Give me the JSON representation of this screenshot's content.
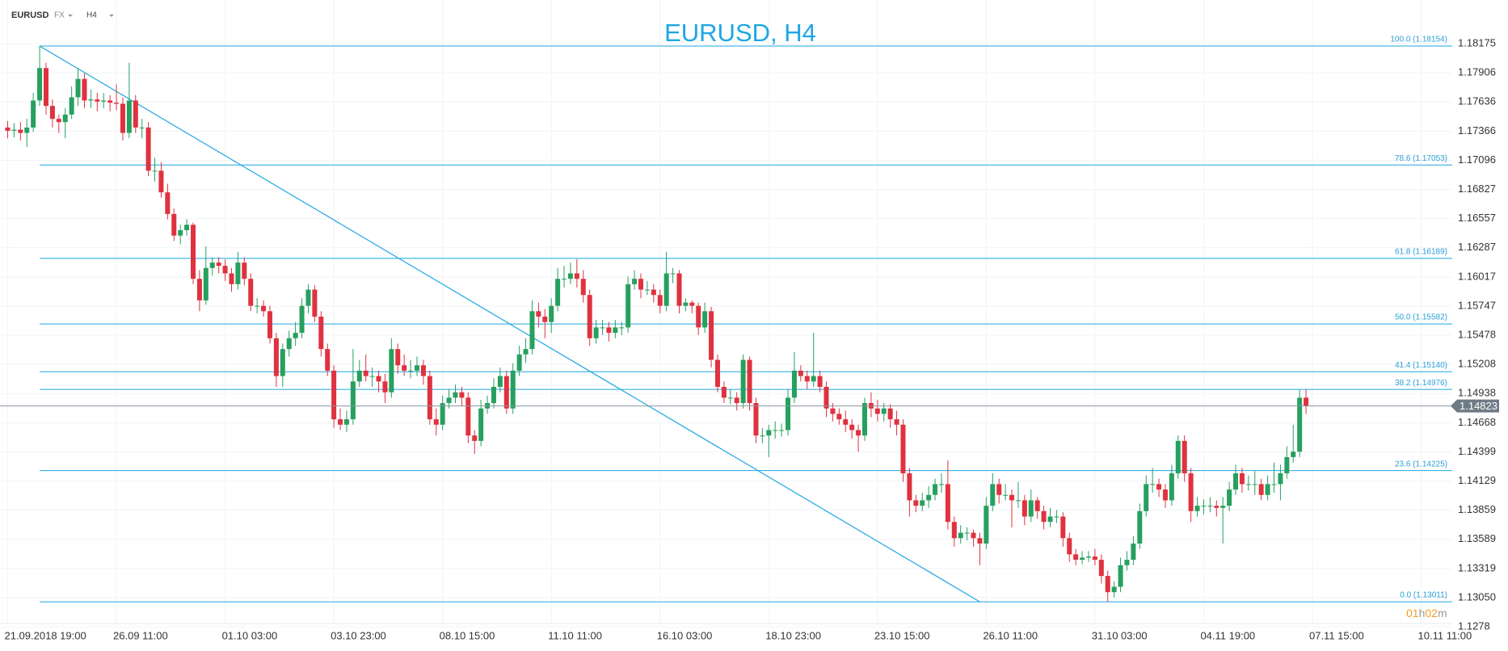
{
  "chart_data": {
    "type": "candlestick",
    "title": "EURUSD, H4",
    "symbol": "EURUSD",
    "market": "FX",
    "timeframe": "H4",
    "countdown": [
      "01",
      "h",
      "02",
      "m"
    ],
    "up_color": "#26a05f",
    "down_color": "#e0313f",
    "line_color": "#1ea6e3",
    "grid": true,
    "xlim": [
      -1.2,
      226.24
    ],
    "ylim": [
      1.1275,
      1.1858
    ],
    "yticks": [
      1.18175,
      1.17906,
      1.17636,
      1.17366,
      1.17096,
      1.16827,
      1.16557,
      1.16287,
      1.16017,
      1.15747,
      1.15478,
      1.15208,
      1.14938,
      1.14668,
      1.14399,
      1.14129,
      1.13859,
      1.13589,
      1.13319,
      {
        "value": 1.1305,
        "label": "1.13050"
      },
      1.1278
    ],
    "xticks": [
      {
        "value": 0,
        "label": "21.09.2018  19:00"
      },
      {
        "value": 17,
        "label": "26.09  11:00"
      },
      {
        "value": 34,
        "label": "01.10  03:00"
      },
      {
        "value": 51,
        "label": "03.10  23:00"
      },
      {
        "value": 68,
        "label": "08.10  15:00"
      },
      {
        "value": 85,
        "label": "11.10  11:00"
      },
      {
        "value": 102,
        "label": "16.10  03:00"
      },
      {
        "value": 119,
        "label": "18.10  23:00"
      },
      {
        "value": 136,
        "label": "23.10  15:00"
      },
      {
        "value": 153,
        "label": "26.10  11:00"
      },
      {
        "value": 170,
        "label": "31.10  03:00"
      },
      {
        "value": 187,
        "label": "04.11  19:00"
      },
      {
        "value": 204,
        "label": "07.11  15:00"
      },
      {
        "value": 221,
        "label": "10.11  11:00"
      }
    ],
    "fib_levels": [
      {
        "value": 1.18154,
        "label": "100.0 (1.18154)"
      },
      {
        "value": 1.17053,
        "label": "78.6 (1.17053)"
      },
      {
        "value": 1.16189,
        "label": "61.8 (1.16189)"
      },
      {
        "value": 1.15582,
        "label": "50.0 (1.15582)"
      },
      {
        "value": 1.1514,
        "label": "41.4 (1.15140)"
      },
      {
        "value": 1.14976,
        "label": "38.2 (1.14976)"
      },
      {
        "value": 1.14225,
        "label": "23.6 (1.14225)"
      },
      {
        "value": 1.13011,
        "label": "0.0 (1.13011)"
      }
    ],
    "trendline": {
      "x": [
        5,
        152
      ],
      "y": [
        1.18154,
        1.13011
      ]
    },
    "ohlc": [
      [
        1.174,
        1.1746,
        1.173,
        1.1737
      ],
      [
        1.1737,
        1.1744,
        1.1731,
        1.1738
      ],
      [
        1.1738,
        1.1745,
        1.1728,
        1.1735
      ],
      [
        1.1735,
        1.1748,
        1.1722,
        1.174
      ],
      [
        1.174,
        1.1772,
        1.1736,
        1.1765
      ],
      [
        1.1765,
        1.18154,
        1.176,
        1.1795
      ],
      [
        1.1795,
        1.18,
        1.1752,
        1.176
      ],
      [
        1.176,
        1.1766,
        1.174,
        1.1748
      ],
      [
        1.1748,
        1.1752,
        1.1735,
        1.1745
      ],
      [
        1.1745,
        1.1758,
        1.173,
        1.1752
      ],
      [
        1.1752,
        1.1778,
        1.1748,
        1.1768
      ],
      [
        1.1768,
        1.1795,
        1.176,
        1.1785
      ],
      [
        1.1785,
        1.179,
        1.1758,
        1.1765
      ],
      [
        1.1765,
        1.1775,
        1.1758,
        1.1766
      ],
      [
        1.1766,
        1.1772,
        1.1755,
        1.1764
      ],
      [
        1.1764,
        1.1772,
        1.1758,
        1.1765
      ],
      [
        1.1765,
        1.177,
        1.1755,
        1.1763
      ],
      [
        1.1763,
        1.178,
        1.1756,
        1.1762
      ],
      [
        1.1762,
        1.1768,
        1.1728,
        1.1735
      ],
      [
        1.1735,
        1.18,
        1.173,
        1.1765
      ],
      [
        1.1765,
        1.177,
        1.1735,
        1.174
      ],
      [
        1.174,
        1.1748,
        1.173,
        1.174
      ],
      [
        1.174,
        1.1745,
        1.1695,
        1.17
      ],
      [
        1.17,
        1.1712,
        1.169,
        1.17
      ],
      [
        1.17,
        1.1708,
        1.1675,
        1.168
      ],
      [
        1.168,
        1.1688,
        1.1655,
        1.166
      ],
      [
        1.166,
        1.1665,
        1.1635,
        1.164
      ],
      [
        1.164,
        1.165,
        1.1632,
        1.1645
      ],
      [
        1.1645,
        1.1655,
        1.164,
        1.165
      ],
      [
        1.165,
        1.1652,
        1.1595,
        1.16
      ],
      [
        1.16,
        1.1608,
        1.157,
        1.158
      ],
      [
        1.158,
        1.163,
        1.1576,
        1.161
      ],
      [
        1.161,
        1.162,
        1.1603,
        1.1615
      ],
      [
        1.1615,
        1.162,
        1.1605,
        1.1612
      ],
      [
        1.1612,
        1.1618,
        1.1598,
        1.1605
      ],
      [
        1.1605,
        1.161,
        1.1588,
        1.1595
      ],
      [
        1.1595,
        1.1625,
        1.159,
        1.1615
      ],
      [
        1.1615,
        1.162,
        1.1594,
        1.16
      ],
      [
        1.16,
        1.1605,
        1.157,
        1.1575
      ],
      [
        1.1575,
        1.1582,
        1.1568,
        1.1575
      ],
      [
        1.1575,
        1.158,
        1.1565,
        1.157
      ],
      [
        1.157,
        1.1575,
        1.154,
        1.1545
      ],
      [
        1.1545,
        1.155,
        1.15,
        1.151
      ],
      [
        1.151,
        1.154,
        1.15,
        1.1535
      ],
      [
        1.1535,
        1.1552,
        1.1528,
        1.1545
      ],
      [
        1.1545,
        1.156,
        1.1538,
        1.155
      ],
      [
        1.155,
        1.1582,
        1.1545,
        1.1575
      ],
      [
        1.1575,
        1.1595,
        1.1568,
        1.159
      ],
      [
        1.159,
        1.1594,
        1.156,
        1.1565
      ],
      [
        1.1565,
        1.157,
        1.1528,
        1.1535
      ],
      [
        1.1535,
        1.154,
        1.151,
        1.1515
      ],
      [
        1.1515,
        1.152,
        1.1462,
        1.147
      ],
      [
        1.147,
        1.148,
        1.146,
        1.1465
      ],
      [
        1.1465,
        1.1478,
        1.1458,
        1.147
      ],
      [
        1.147,
        1.1535,
        1.1465,
        1.1505
      ],
      [
        1.1505,
        1.1525,
        1.15,
        1.1515
      ],
      [
        1.1515,
        1.153,
        1.1505,
        1.151
      ],
      [
        1.151,
        1.1518,
        1.15,
        1.151
      ],
      [
        1.151,
        1.1515,
        1.1495,
        1.1505
      ],
      [
        1.1505,
        1.1512,
        1.1485,
        1.1495
      ],
      [
        1.1495,
        1.1545,
        1.149,
        1.1535
      ],
      [
        1.1535,
        1.154,
        1.1512,
        1.152
      ],
      [
        1.152,
        1.153,
        1.151,
        1.1515
      ],
      [
        1.1515,
        1.1525,
        1.1508,
        1.1515
      ],
      [
        1.1515,
        1.1528,
        1.151,
        1.152
      ],
      [
        1.152,
        1.1525,
        1.1502,
        1.151
      ],
      [
        1.151,
        1.1515,
        1.1465,
        1.147
      ],
      [
        1.147,
        1.148,
        1.1455,
        1.1465
      ],
      [
        1.1465,
        1.1492,
        1.146,
        1.1485
      ],
      [
        1.1485,
        1.1498,
        1.148,
        1.149
      ],
      [
        1.149,
        1.1502,
        1.1485,
        1.1495
      ],
      [
        1.1495,
        1.15,
        1.1482,
        1.149
      ],
      [
        1.149,
        1.1495,
        1.1448,
        1.1455
      ],
      [
        1.1455,
        1.146,
        1.1438,
        1.145
      ],
      [
        1.145,
        1.1488,
        1.1445,
        1.148
      ],
      [
        1.148,
        1.1492,
        1.1475,
        1.1485
      ],
      [
        1.1485,
        1.1508,
        1.148,
        1.15
      ],
      [
        1.15,
        1.1518,
        1.1495,
        1.151
      ],
      [
        1.151,
        1.1515,
        1.1475,
        1.148
      ],
      [
        1.148,
        1.1522,
        1.1475,
        1.1515
      ],
      [
        1.1515,
        1.1538,
        1.151,
        1.153
      ],
      [
        1.153,
        1.1545,
        1.1522,
        1.1535
      ],
      [
        1.1535,
        1.158,
        1.153,
        1.157
      ],
      [
        1.157,
        1.1578,
        1.1555,
        1.1565
      ],
      [
        1.1565,
        1.1572,
        1.1545,
        1.156
      ],
      [
        1.156,
        1.1582,
        1.155,
        1.1575
      ],
      [
        1.1575,
        1.161,
        1.157,
        1.16
      ],
      [
        1.16,
        1.1612,
        1.1592,
        1.16
      ],
      [
        1.16,
        1.1615,
        1.1595,
        1.1605
      ],
      [
        1.1605,
        1.1618,
        1.1592,
        1.16
      ],
      [
        1.16,
        1.1608,
        1.1578,
        1.1585
      ],
      [
        1.1585,
        1.159,
        1.1538,
        1.1545
      ],
      [
        1.1545,
        1.1562,
        1.154,
        1.1555
      ],
      [
        1.1555,
        1.1562,
        1.1548,
        1.1555
      ],
      [
        1.1555,
        1.156,
        1.1542,
        1.155
      ],
      [
        1.155,
        1.1562,
        1.1545,
        1.1555
      ],
      [
        1.1555,
        1.156,
        1.1548,
        1.1555
      ],
      [
        1.1555,
        1.1602,
        1.155,
        1.1595
      ],
      [
        1.1595,
        1.1608,
        1.159,
        1.16
      ],
      [
        1.16,
        1.1605,
        1.1582,
        1.159
      ],
      [
        1.159,
        1.1598,
        1.1585,
        1.159
      ],
      [
        1.159,
        1.1595,
        1.1578,
        1.1585
      ],
      [
        1.1585,
        1.159,
        1.1568,
        1.1575
      ],
      [
        1.1575,
        1.1625,
        1.157,
        1.1605
      ],
      [
        1.1605,
        1.161,
        1.1596,
        1.1605
      ],
      [
        1.1605,
        1.1608,
        1.1568,
        1.1575
      ],
      [
        1.1575,
        1.1582,
        1.157,
        1.1578
      ],
      [
        1.1578,
        1.158,
        1.1568,
        1.1575
      ],
      [
        1.1575,
        1.1578,
        1.1548,
        1.1555
      ],
      [
        1.1555,
        1.1578,
        1.155,
        1.157
      ],
      [
        1.157,
        1.1574,
        1.1518,
        1.1525
      ],
      [
        1.1525,
        1.153,
        1.1495,
        1.15
      ],
      [
        1.15,
        1.1505,
        1.1485,
        1.149
      ],
      [
        1.149,
        1.1498,
        1.1484,
        1.149
      ],
      [
        1.149,
        1.1495,
        1.1478,
        1.1485
      ],
      [
        1.1485,
        1.153,
        1.148,
        1.1525
      ],
      [
        1.1525,
        1.1528,
        1.1478,
        1.1485
      ],
      [
        1.1485,
        1.149,
        1.1448,
        1.1455
      ],
      [
        1.1455,
        1.1462,
        1.1448,
        1.1455
      ],
      [
        1.1455,
        1.1465,
        1.1435,
        1.146
      ],
      [
        1.146,
        1.1468,
        1.1452,
        1.146
      ],
      [
        1.146,
        1.1466,
        1.1454,
        1.146
      ],
      [
        1.146,
        1.1498,
        1.1455,
        1.149
      ],
      [
        1.149,
        1.1532,
        1.1485,
        1.1515
      ],
      [
        1.1515,
        1.152,
        1.1505,
        1.151
      ],
      [
        1.151,
        1.1515,
        1.1498,
        1.1505
      ],
      [
        1.1505,
        1.155,
        1.15,
        1.151
      ],
      [
        1.151,
        1.1515,
        1.1495,
        1.15
      ],
      [
        1.15,
        1.1505,
        1.1472,
        1.148
      ],
      [
        1.148,
        1.1485,
        1.1468,
        1.1475
      ],
      [
        1.1475,
        1.148,
        1.1465,
        1.147
      ],
      [
        1.147,
        1.1478,
        1.1458,
        1.1465
      ],
      [
        1.1465,
        1.147,
        1.1452,
        1.146
      ],
      [
        1.146,
        1.1465,
        1.144,
        1.1455
      ],
      [
        1.1455,
        1.149,
        1.145,
        1.1485
      ],
      [
        1.1485,
        1.1495,
        1.1472,
        1.148
      ],
      [
        1.148,
        1.1488,
        1.1468,
        1.1475
      ],
      [
        1.1475,
        1.1485,
        1.1468,
        1.148
      ],
      [
        1.148,
        1.1484,
        1.1462,
        1.147
      ],
      [
        1.147,
        1.1478,
        1.1455,
        1.1465
      ],
      [
        1.1465,
        1.147,
        1.1412,
        1.142
      ],
      [
        1.142,
        1.1425,
        1.138,
        1.1395
      ],
      [
        1.1395,
        1.14,
        1.1384,
        1.139
      ],
      [
        1.139,
        1.1402,
        1.1385,
        1.1395
      ],
      [
        1.1395,
        1.1408,
        1.1388,
        1.14
      ],
      [
        1.14,
        1.1415,
        1.1395,
        1.141
      ],
      [
        1.141,
        1.142,
        1.1402,
        1.141
      ],
      [
        1.141,
        1.1432,
        1.1368,
        1.1375
      ],
      [
        1.1375,
        1.138,
        1.1352,
        1.136
      ],
      [
        1.136,
        1.1372,
        1.1355,
        1.1365
      ],
      [
        1.1365,
        1.137,
        1.1358,
        1.1365
      ],
      [
        1.1365,
        1.1368,
        1.1352,
        1.136
      ],
      [
        1.136,
        1.1365,
        1.1335,
        1.1355
      ],
      [
        1.1355,
        1.1398,
        1.135,
        1.139
      ],
      [
        1.139,
        1.142,
        1.1385,
        1.141
      ],
      [
        1.141,
        1.1415,
        1.1392,
        1.14
      ],
      [
        1.14,
        1.141,
        1.1395,
        1.14
      ],
      [
        1.14,
        1.1405,
        1.137,
        1.1395
      ],
      [
        1.1395,
        1.1412,
        1.1388,
        1.1395
      ],
      [
        1.1395,
        1.14,
        1.1372,
        1.138
      ],
      [
        1.138,
        1.1405,
        1.1375,
        1.1395
      ],
      [
        1.1395,
        1.1398,
        1.1378,
        1.1385
      ],
      [
        1.1385,
        1.139,
        1.1368,
        1.1375
      ],
      [
        1.1375,
        1.1388,
        1.137,
        1.138
      ],
      [
        1.138,
        1.1386,
        1.1374,
        1.138
      ],
      [
        1.138,
        1.1384,
        1.1352,
        1.136
      ],
      [
        1.136,
        1.1365,
        1.1338,
        1.1345
      ],
      [
        1.1345,
        1.135,
        1.1335,
        1.134
      ],
      [
        1.134,
        1.1348,
        1.1336,
        1.1342
      ],
      [
        1.1342,
        1.1348,
        1.1338,
        1.1343
      ],
      [
        1.1343,
        1.135,
        1.1335,
        1.134
      ],
      [
        1.134,
        1.1345,
        1.1318,
        1.1325
      ],
      [
        1.1325,
        1.133,
        1.13011,
        1.131
      ],
      [
        1.131,
        1.132,
        1.1305,
        1.1315
      ],
      [
        1.1315,
        1.1342,
        1.131,
        1.1335
      ],
      [
        1.1335,
        1.1348,
        1.133,
        1.134
      ],
      [
        1.134,
        1.1362,
        1.1335,
        1.1355
      ],
      [
        1.1355,
        1.1392,
        1.135,
        1.1385
      ],
      [
        1.1385,
        1.1418,
        1.138,
        1.141
      ],
      [
        1.141,
        1.1425,
        1.1402,
        1.141
      ],
      [
        1.141,
        1.1415,
        1.1398,
        1.1405
      ],
      [
        1.1405,
        1.141,
        1.1388,
        1.1395
      ],
      [
        1.1395,
        1.1428,
        1.139,
        1.142
      ],
      [
        1.142,
        1.1455,
        1.1415,
        1.145
      ],
      [
        1.145,
        1.1455,
        1.1412,
        1.142
      ],
      [
        1.142,
        1.1425,
        1.1375,
        1.1385
      ],
      [
        1.1385,
        1.1398,
        1.138,
        1.139
      ],
      [
        1.139,
        1.1396,
        1.1382,
        1.139
      ],
      [
        1.139,
        1.1398,
        1.1384,
        1.139
      ],
      [
        1.139,
        1.1395,
        1.138,
        1.1388
      ],
      [
        1.1388,
        1.1398,
        1.1355,
        1.139
      ],
      [
        1.139,
        1.1412,
        1.1385,
        1.1405
      ],
      [
        1.1405,
        1.1428,
        1.14,
        1.142
      ],
      [
        1.142,
        1.1425,
        1.1402,
        1.141
      ],
      [
        1.141,
        1.1418,
        1.1404,
        1.141
      ],
      [
        1.141,
        1.1422,
        1.14,
        1.141
      ],
      [
        1.141,
        1.1415,
        1.1395,
        1.14
      ],
      [
        1.14,
        1.1418,
        1.1395,
        1.141
      ],
      [
        1.141,
        1.143,
        1.1402,
        1.141
      ],
      [
        1.141,
        1.1428,
        1.1395,
        1.142
      ],
      [
        1.142,
        1.1445,
        1.1415,
        1.1435
      ],
      [
        1.1435,
        1.1465,
        1.143,
        1.144
      ],
      [
        1.144,
        1.14976,
        1.1435,
        1.149
      ],
      [
        1.149,
        1.14976,
        1.1475,
        1.14823
      ]
    ]
  }
}
